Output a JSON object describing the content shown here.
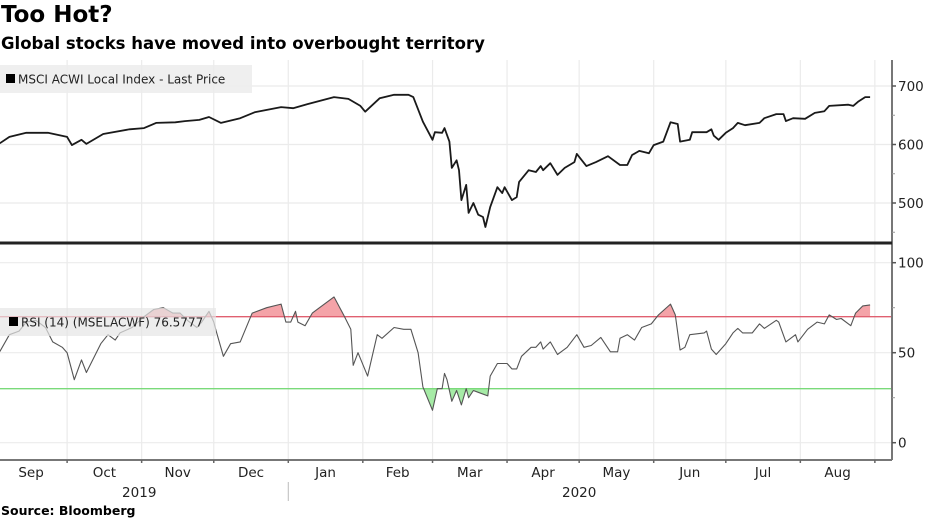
{
  "header": {
    "title": "Too Hot?",
    "subtitle": "Global stocks have moved into overbought territory"
  },
  "footer": {
    "source": "Source: Bloomberg"
  },
  "colors": {
    "price_line": "#1a1a1a",
    "rsi_line": "#555555",
    "overbought_line": "#e06070",
    "oversold_line": "#7ada7a",
    "overbought_fill": "#f4a3a8",
    "oversold_fill": "#a6eba6",
    "grid": "#ebebeb"
  },
  "chart_data": [
    {
      "type": "line",
      "legend": "MSCI ACWI Local Index - Last Price",
      "legend_placement": "top-left",
      "y_axis_side": "right",
      "yticks": [
        500,
        600,
        700
      ],
      "ylim": [
        440,
        730
      ],
      "grid": true,
      "x": [
        "2019-09-03",
        "2019-09-07",
        "2019-09-14",
        "2019-09-23",
        "2019-10-01",
        "2019-10-03",
        "2019-10-07",
        "2019-10-09",
        "2019-10-16",
        "2019-10-27",
        "2019-11-02",
        "2019-11-07",
        "2019-11-15",
        "2019-11-19",
        "2019-11-25",
        "2019-11-29",
        "2019-12-04",
        "2019-12-12",
        "2019-12-18",
        "2019-12-29",
        "2020-01-03",
        "2020-01-09",
        "2020-01-20",
        "2020-01-26",
        "2020-01-31",
        "2020-02-02",
        "2020-02-08",
        "2020-02-14",
        "2020-02-20",
        "2020-02-22",
        "2020-02-26",
        "2020-03-01",
        "2020-03-02",
        "2020-03-05",
        "2020-03-06",
        "2020-03-08",
        "2020-03-09",
        "2020-03-11",
        "2020-03-12",
        "2020-03-13",
        "2020-03-15",
        "2020-03-16",
        "2020-03-18",
        "2020-03-20",
        "2020-03-22",
        "2020-03-23",
        "2020-03-25",
        "2020-03-28",
        "2020-03-30",
        "2020-03-31",
        "2020-04-03",
        "2020-04-05",
        "2020-04-06",
        "2020-04-10",
        "2020-04-13",
        "2020-04-15",
        "2020-04-16",
        "2020-04-19",
        "2020-04-22",
        "2020-04-25",
        "2020-04-29",
        "2020-04-30",
        "2020-05-04",
        "2020-05-08",
        "2020-05-13",
        "2020-05-18",
        "2020-05-21",
        "2020-05-23",
        "2020-05-26",
        "2020-05-30",
        "2020-06-01",
        "2020-06-05",
        "2020-06-08",
        "2020-06-11",
        "2020-06-12",
        "2020-06-16",
        "2020-06-17",
        "2020-06-23",
        "2020-06-25",
        "2020-06-26",
        "2020-06-28",
        "2020-07-01",
        "2020-07-04",
        "2020-07-06",
        "2020-07-09",
        "2020-07-15",
        "2020-07-17",
        "2020-07-22",
        "2020-07-25",
        "2020-07-26",
        "2020-07-29",
        "2020-08-03",
        "2020-08-07",
        "2020-08-11",
        "2020-08-13",
        "2020-08-21",
        "2020-08-23",
        "2020-08-25",
        "2020-08-28",
        "2020-08-30"
      ],
      "values": [
        602,
        613,
        620,
        620,
        613,
        599,
        608,
        601,
        618,
        626,
        628,
        637,
        638,
        640,
        642,
        647,
        637,
        645,
        655,
        664,
        662,
        669,
        681,
        678,
        666,
        656,
        679,
        685,
        685,
        681,
        639,
        608,
        621,
        620,
        628,
        605,
        560,
        573,
        556,
        505,
        531,
        483,
        500,
        480,
        476,
        459,
        493,
        527,
        517,
        527,
        505,
        510,
        536,
        556,
        553,
        563,
        556,
        568,
        548,
        560,
        570,
        584,
        563,
        570,
        580,
        565,
        565,
        582,
        589,
        585,
        599,
        605,
        638,
        635,
        605,
        608,
        621,
        621,
        626,
        615,
        608,
        620,
        628,
        637,
        633,
        637,
        645,
        652,
        652,
        640,
        645,
        644,
        654,
        657,
        666,
        668,
        666,
        673,
        681,
        681
      ]
    },
    {
      "type": "line",
      "legend": "RSI (14) (MSELACWF) 76.5777",
      "legend_placement": "top-left",
      "y_axis_side": "right",
      "yticks": [
        0,
        50,
        100
      ],
      "ylim": [
        -10,
        112
      ],
      "overbought": 70,
      "oversold": 30,
      "grid": true,
      "x": [
        "2019-09-03",
        "2019-09-07",
        "2019-09-11",
        "2019-09-14",
        "2019-09-18",
        "2019-09-22",
        "2019-09-25",
        "2019-09-29",
        "2019-10-01",
        "2019-10-04",
        "2019-10-07",
        "2019-10-09",
        "2019-10-15",
        "2019-10-18",
        "2019-10-21",
        "2019-10-23",
        "2019-10-28",
        "2019-11-02",
        "2019-11-06",
        "2019-11-10",
        "2019-11-14",
        "2019-11-17",
        "2019-11-20",
        "2019-11-24",
        "2019-11-26",
        "2019-11-29",
        "2019-12-01",
        "2019-12-02",
        "2019-12-05",
        "2019-12-08",
        "2019-12-12",
        "2019-12-17",
        "2019-12-23",
        "2019-12-29",
        "2019-12-31",
        "2020-01-02",
        "2020-01-04",
        "2020-01-05",
        "2020-01-08",
        "2020-01-11",
        "2020-01-14",
        "2020-01-20",
        "2020-01-24",
        "2020-01-27",
        "2020-01-28",
        "2020-01-30",
        "2020-02-03",
        "2020-02-07",
        "2020-02-09",
        "2020-02-14",
        "2020-02-18",
        "2020-02-21",
        "2020-02-24",
        "2020-02-26",
        "2020-03-01",
        "2020-03-03",
        "2020-03-05",
        "2020-03-06",
        "2020-03-07",
        "2020-03-09",
        "2020-03-11",
        "2020-03-13",
        "2020-03-15",
        "2020-03-16",
        "2020-03-18",
        "2020-03-20",
        "2020-03-24",
        "2020-03-25",
        "2020-03-28",
        "2020-04-01",
        "2020-04-03",
        "2020-04-05",
        "2020-04-07",
        "2020-04-11",
        "2020-04-13",
        "2020-04-15",
        "2020-04-16",
        "2020-04-19",
        "2020-04-22",
        "2020-04-24",
        "2020-04-26",
        "2020-04-30",
        "2020-05-03",
        "2020-05-06",
        "2020-05-10",
        "2020-05-14",
        "2020-05-17",
        "2020-05-18",
        "2020-05-21",
        "2020-05-24",
        "2020-05-27",
        "2020-05-31",
        "2020-06-03",
        "2020-06-08",
        "2020-06-10",
        "2020-06-12",
        "2020-06-14",
        "2020-06-16",
        "2020-06-22",
        "2020-06-23",
        "2020-06-25",
        "2020-06-27",
        "2020-07-01",
        "2020-07-04",
        "2020-07-06",
        "2020-07-08",
        "2020-07-10",
        "2020-07-12",
        "2020-07-15",
        "2020-07-17",
        "2020-07-22",
        "2020-07-23",
        "2020-07-26",
        "2020-07-28",
        "2020-07-30",
        "2020-07-31",
        "2020-08-04",
        "2020-08-08",
        "2020-08-11",
        "2020-08-13",
        "2020-08-16",
        "2020-08-18",
        "2020-08-22",
        "2020-08-24",
        "2020-08-27",
        "2020-08-30"
      ],
      "values": [
        50.6,
        60,
        62,
        67,
        68,
        64,
        56,
        53,
        50,
        35,
        46,
        39,
        55,
        60,
        57,
        61,
        64,
        70,
        74,
        75,
        72,
        72,
        68,
        64,
        67,
        73,
        67,
        62,
        48,
        55,
        56,
        72,
        75,
        77,
        67,
        67,
        73,
        67,
        65,
        72,
        75,
        81,
        71,
        63,
        43,
        50,
        37,
        60,
        58,
        64,
        63,
        63,
        50,
        31,
        18,
        30,
        30,
        38.5,
        35,
        23,
        29,
        21,
        30,
        25,
        29,
        28,
        26,
        37,
        44,
        44,
        41,
        41,
        48,
        53,
        53,
        56,
        52,
        56,
        49,
        51,
        53,
        60,
        53,
        54,
        58.5,
        50.5,
        50.5,
        58,
        60,
        57,
        64,
        66,
        71,
        77,
        71,
        51.5,
        53,
        60,
        61,
        62,
        52,
        49,
        55,
        61,
        63.5,
        61,
        61,
        61,
        66,
        63.5,
        68,
        67,
        56,
        58,
        60,
        56,
        63,
        67,
        66,
        71,
        68.5,
        69,
        65,
        72,
        76,
        76.5777
      ]
    }
  ],
  "x_axis": {
    "months": [
      "Sep",
      "Oct",
      "Nov",
      "Dec",
      "Jan",
      "Feb",
      "Mar",
      "Apr",
      "May",
      "Jun",
      "Jul",
      "Aug"
    ],
    "month_starts": [
      "2019-09-01",
      "2019-10-01",
      "2019-11-01",
      "2019-12-01",
      "2020-01-01",
      "2020-02-01",
      "2020-03-01",
      "2020-04-01",
      "2020-05-01",
      "2020-06-01",
      "2020-07-01",
      "2020-08-01",
      "2020-09-01"
    ],
    "years": [
      {
        "label": "2019",
        "center": "2019-10-31"
      },
      {
        "label": "2020",
        "center": "2020-05-01"
      }
    ],
    "year_divider": "2020-01-01"
  }
}
